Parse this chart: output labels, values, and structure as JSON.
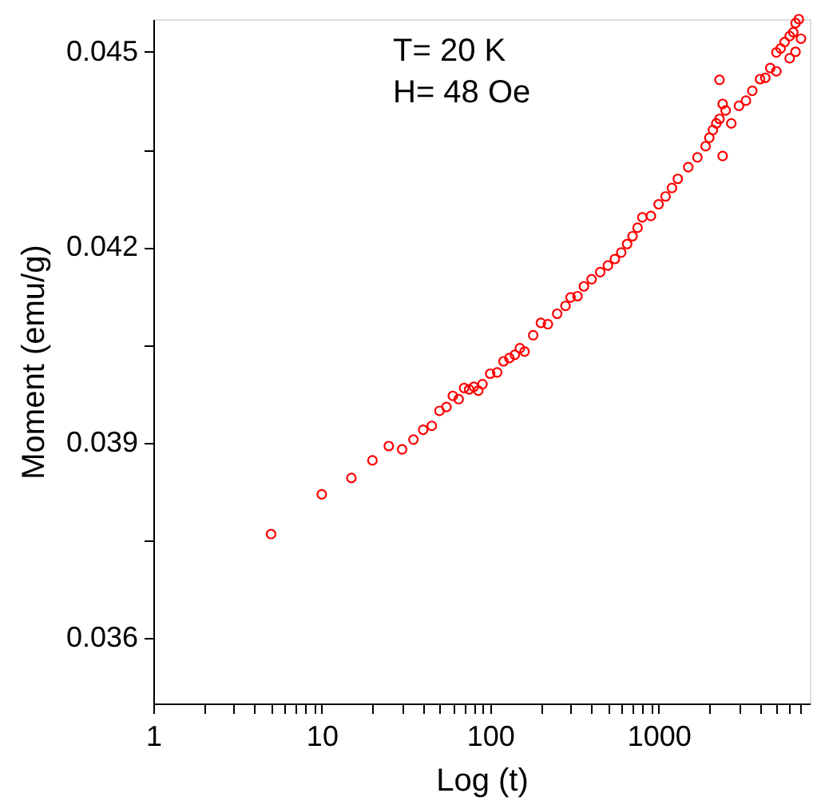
{
  "chart_data": {
    "type": "scatter",
    "xlabel": "Log (t)",
    "ylabel": "Moment (emu/g)",
    "annotations": [
      "T= 20 K",
      "H= 48 Oe"
    ],
    "log": "x",
    "marker": "circle",
    "grid": false,
    "xlim": [
      1,
      7900
    ],
    "ylim": [
      0.035,
      0.0455
    ],
    "xticks": [
      1,
      {
        "value": 2,
        "label": null
      },
      {
        "value": 3,
        "label": null
      },
      {
        "value": 4,
        "label": null
      },
      {
        "value": 5,
        "label": null
      },
      {
        "value": 6,
        "label": null
      },
      {
        "value": 7,
        "label": null
      },
      {
        "value": 8,
        "label": null
      },
      {
        "value": 9,
        "label": null
      },
      10,
      {
        "value": 20,
        "label": null
      },
      {
        "value": 30,
        "label": null
      },
      {
        "value": 40,
        "label": null
      },
      {
        "value": 50,
        "label": null
      },
      {
        "value": 60,
        "label": null
      },
      {
        "value": 70,
        "label": null
      },
      {
        "value": 80,
        "label": null
      },
      {
        "value": 90,
        "label": null
      },
      100,
      {
        "value": 200,
        "label": null
      },
      {
        "value": 300,
        "label": null
      },
      {
        "value": 400,
        "label": null
      },
      {
        "value": 500,
        "label": null
      },
      {
        "value": 600,
        "label": null
      },
      {
        "value": 700,
        "label": null
      },
      {
        "value": 800,
        "label": null
      },
      {
        "value": 900,
        "label": null
      },
      1000,
      {
        "value": 2000,
        "label": null
      },
      {
        "value": 3000,
        "label": null
      },
      {
        "value": 4000,
        "label": null
      },
      {
        "value": 5000,
        "label": null
      },
      {
        "value": 6000,
        "label": null
      },
      {
        "value": 7000,
        "label": null
      }
    ],
    "yticks": [
      0.036,
      {
        "value": 0.0375,
        "label": null
      },
      0.039,
      {
        "value": 0.0405,
        "label": null
      },
      0.042,
      {
        "value": 0.0435,
        "label": null
      },
      0.045
    ],
    "series": [
      {
        "color": "#ff0000",
        "x": [
          5,
          10,
          15,
          20,
          25,
          30,
          35,
          40,
          45,
          50,
          55,
          60,
          65,
          70,
          75,
          80,
          85,
          90,
          100,
          110,
          120,
          130,
          140,
          150,
          160,
          180,
          200,
          220,
          250,
          280,
          300,
          330,
          360,
          400,
          450,
          500,
          550,
          600,
          650,
          700,
          750,
          800,
          900,
          1000,
          1100,
          1200,
          1300,
          1500,
          1700,
          1900,
          2000,
          2100,
          2200,
          2300,
          2300,
          2400,
          2400,
          2500,
          2700,
          3000,
          3300,
          3600,
          4000,
          4300,
          4600,
          5000,
          5000,
          5300,
          5600,
          6000,
          6000,
          6300,
          6500,
          6500,
          6800,
          7000
        ],
        "values": [
          0.0376,
          0.03821,
          0.03846,
          0.03873,
          0.03895,
          0.0389,
          0.03905,
          0.0392,
          0.03926,
          0.03949,
          0.03955,
          0.03972,
          0.03967,
          0.03984,
          0.03982,
          0.03986,
          0.0398,
          0.0399,
          0.04006,
          0.04008,
          0.04025,
          0.0403,
          0.04035,
          0.04045,
          0.0404,
          0.04065,
          0.04084,
          0.04082,
          0.04098,
          0.0411,
          0.04123,
          0.04125,
          0.0414,
          0.04151,
          0.04162,
          0.04172,
          0.04182,
          0.04192,
          0.04205,
          0.04217,
          0.0423,
          0.04246,
          0.04248,
          0.04266,
          0.04278,
          0.04291,
          0.04305,
          0.04323,
          0.04338,
          0.04355,
          0.04368,
          0.0438,
          0.0439,
          0.04397,
          0.04457,
          0.0434,
          0.0442,
          0.0441,
          0.0439,
          0.04417,
          0.04425,
          0.0444,
          0.04458,
          0.0446,
          0.04475,
          0.04499,
          0.0447,
          0.04505,
          0.04515,
          0.04524,
          0.0449,
          0.0453,
          0.04544,
          0.045,
          0.0455,
          0.0452
        ]
      }
    ]
  }
}
